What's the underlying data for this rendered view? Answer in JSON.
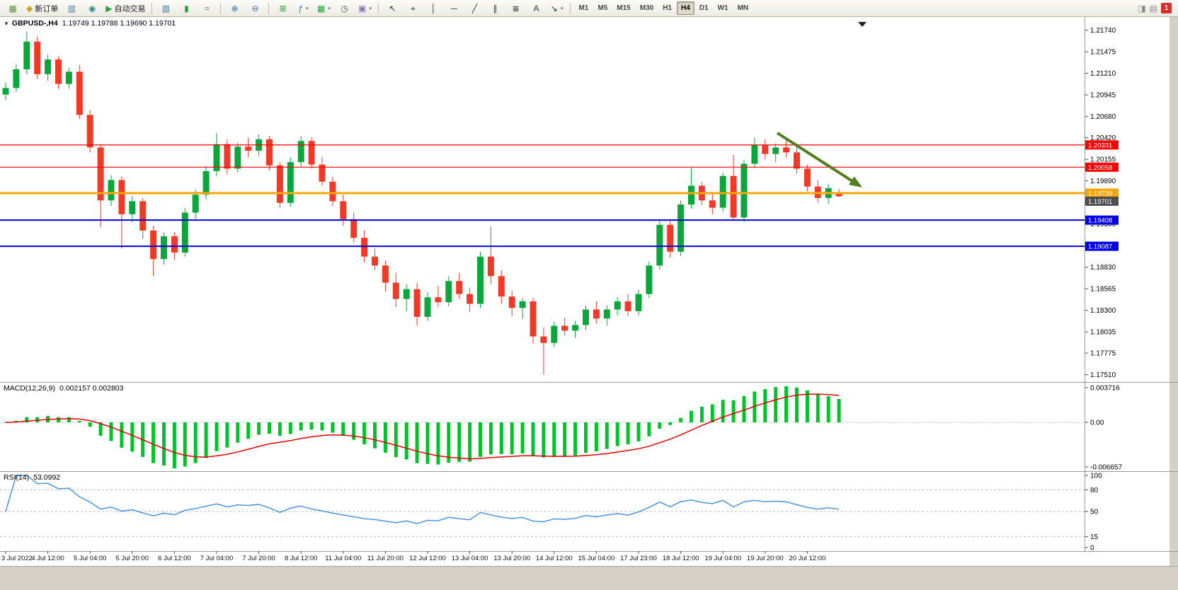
{
  "toolbar": {
    "dropdown_glyph": "▾",
    "groups": [
      {
        "name": "trade-group",
        "items": [
          {
            "name": "terminal-icon-button",
            "glyph": "▦",
            "color": "#5d8f41"
          },
          {
            "name": "new-order-button",
            "glyph": "◆",
            "color": "#d7a022",
            "label": "新订单"
          },
          {
            "name": "market-depth-button",
            "glyph": "▥",
            "color": "#4a76b8"
          },
          {
            "name": "web-terminal-button",
            "glyph": "◉",
            "color": "#2e8f85"
          },
          {
            "name": "auto-trading-button",
            "glyph": "▶",
            "color": "#27a23b",
            "label": "自动交易"
          }
        ]
      },
      {
        "name": "chart-type-group",
        "items": [
          {
            "name": "ohlc-bars-button",
            "glyph": "▥",
            "color": "#3a6fae"
          },
          {
            "name": "candlestick-chart-button",
            "glyph": "▮",
            "color": "#27a23b"
          },
          {
            "name": "line-chart-button",
            "glyph": "≈",
            "color": "#3a6fae"
          }
        ]
      },
      {
        "name": "zoom-group",
        "items": [
          {
            "name": "zoom-in-button",
            "glyph": "⊕",
            "color": "#3a6fae"
          },
          {
            "name": "zoom-out-button",
            "glyph": "⊖",
            "color": "#3a6fae"
          }
        ]
      },
      {
        "name": "window-group",
        "items": [
          {
            "name": "tile-windows-button",
            "glyph": "⊞",
            "color": "#27a23b"
          },
          {
            "name": "indicators-button",
            "glyph": "ƒ",
            "color": "#3a6fae",
            "dropdown": true
          },
          {
            "name": "new-chart-button",
            "glyph": "▦",
            "color": "#27a23b",
            "dropdown": true
          },
          {
            "name": "clock-button",
            "glyph": "◷",
            "color": "#555555"
          },
          {
            "name": "snapshot-button",
            "glyph": "▣",
            "color": "#8a6fae",
            "dropdown": true
          }
        ]
      },
      {
        "name": "objects-group",
        "items": [
          {
            "name": "cursor-button",
            "glyph": "↖",
            "color": "#333333"
          },
          {
            "name": "crosshair-button",
            "glyph": "⌖",
            "color": "#333333"
          },
          {
            "name": "vertical-line-button",
            "glyph": "│",
            "color": "#333333"
          },
          {
            "name": "horizontal-line-button",
            "glyph": "─",
            "color": "#333333"
          },
          {
            "name": "trendline-button",
            "glyph": "╱",
            "color": "#333333"
          },
          {
            "name": "channel-button",
            "glyph": "∥",
            "color": "#333333"
          },
          {
            "name": "fibonacci-button",
            "glyph": "≣",
            "color": "#333333"
          },
          {
            "name": "text-button",
            "glyph": "A",
            "color": "#333333"
          },
          {
            "name": "arrows-button",
            "glyph": "↘",
            "color": "#333333",
            "dropdown": true
          }
        ]
      }
    ],
    "timeframes": [
      {
        "name": "timeframe-m1-button",
        "label": "M1"
      },
      {
        "name": "timeframe-m5-button",
        "label": "M5"
      },
      {
        "name": "timeframe-m15-button",
        "label": "M15"
      },
      {
        "name": "timeframe-m30-button",
        "label": "M30"
      },
      {
        "name": "timeframe-h1-button",
        "label": "H1"
      },
      {
        "name": "timeframe-h4-button",
        "label": "H4",
        "active": true
      },
      {
        "name": "timeframe-d1-button",
        "label": "D1"
      },
      {
        "name": "timeframe-w1-button",
        "label": "W1"
      },
      {
        "name": "timeframe-mn-button",
        "label": "MN"
      }
    ],
    "right": [
      {
        "name": "sound-icon",
        "glyph": "◨",
        "color": "#8a8a8a"
      },
      {
        "name": "news-icon",
        "glyph": "▤",
        "color": "#8a8a8a"
      },
      {
        "name": "notification-badge",
        "label": "1",
        "badge": true
      }
    ]
  },
  "chart": {
    "menu_icon": "▼",
    "symbol_label": "GBPUSD-,H4",
    "ohlc_label": "1.19749 1.19788 1.19690 1.19701",
    "price_axis": [
      "1.21740",
      "1.21475",
      "1.21210",
      "1.20945",
      "1.20680",
      "1.20420",
      "1.20155",
      "1.19890",
      "1.19625",
      "1.19360",
      "1.19095",
      "1.18830",
      "1.18565",
      "1.18300",
      "1.18035",
      "1.17775",
      "1.17510"
    ],
    "time_axis": [
      "3 Jul 2022",
      "4 Jul 12:00",
      "5 Jul 04:00",
      "5 Jul 20:00",
      "6 Jul 12:00",
      "7 Jul 04:00",
      "7 Jul 20:00",
      "8 Jul 12:00",
      "11 Jul 04:00",
      "11 Jul 20:00",
      "12 Jul 12:00",
      "13 Jul 04:00",
      "13 Jul 20:00",
      "14 Jul 12:00",
      "15 Jul 04:00",
      "17 Jul 23:00",
      "18 Jul 12:00",
      "19 Jul 04:00",
      "19 Jul 20:00",
      "20 Jul 12:00"
    ],
    "levels": [
      {
        "name": "resistance-line-upper",
        "price": 1.20331,
        "label": "1.20331",
        "color": "#FF0000",
        "width": 1.2
      },
      {
        "name": "resistance-line-lower",
        "price": 1.20058,
        "label": "1.20058",
        "color": "#FF0000",
        "width": 1.2
      },
      {
        "name": "pivot-line-orange",
        "price": 1.19739,
        "label": "1.19739",
        "color": "#FFA500",
        "width": 3
      },
      {
        "name": "support-line-upper",
        "price": 1.19408,
        "label": "1.19408",
        "color": "#0000E6",
        "width": 2
      },
      {
        "name": "support-line-lower",
        "price": 1.19087,
        "label": "1.19087",
        "color": "#0000E6",
        "width": 2
      }
    ],
    "current_price": {
      "label": "1.19701",
      "price": 1.19701,
      "color": "#4d4d4d"
    },
    "arrow": {
      "name": "trend-arrow",
      "from": [
        1098,
        164
      ],
      "to": [
        1218,
        241
      ],
      "color": "#537D1F"
    }
  },
  "chart_data": {
    "type": "candlestick",
    "symbol": "GBPUSD",
    "timeframe": "H4",
    "up_color": "#0CA73C",
    "down_color": "#EF3A28",
    "candles": [
      [
        1.2095,
        1.211,
        1.2088,
        1.2103
      ],
      [
        1.2103,
        1.2132,
        1.2098,
        1.2126
      ],
      [
        1.2126,
        1.2172,
        1.212,
        1.216
      ],
      [
        1.216,
        1.2166,
        1.2114,
        1.212
      ],
      [
        1.212,
        1.2144,
        1.2112,
        1.2138
      ],
      [
        1.2138,
        1.2142,
        1.2102,
        1.2108
      ],
      [
        1.2108,
        1.2128,
        1.2102,
        1.2123
      ],
      [
        1.2123,
        1.2131,
        1.2065,
        1.207
      ],
      [
        1.207,
        1.2076,
        1.2024,
        1.203
      ],
      [
        1.203,
        1.2034,
        1.1932,
        1.1965
      ],
      [
        1.1965,
        1.1996,
        1.1958,
        1.199
      ],
      [
        1.199,
        1.1994,
        1.1906,
        1.1948
      ],
      [
        1.1948,
        1.197,
        1.1938,
        1.1964
      ],
      [
        1.1964,
        1.1968,
        1.1918,
        1.1928
      ],
      [
        1.1928,
        1.1934,
        1.1872,
        1.1893
      ],
      [
        1.1893,
        1.1926,
        1.1886,
        1.1921
      ],
      [
        1.1921,
        1.1926,
        1.1892,
        1.1901
      ],
      [
        1.1901,
        1.1956,
        1.1896,
        1.195
      ],
      [
        1.195,
        1.1978,
        1.1942,
        1.1972
      ],
      [
        1.1972,
        1.2007,
        1.1966,
        1.2001
      ],
      [
        1.2001,
        1.2048,
        1.1995,
        1.2034
      ],
      [
        1.2034,
        1.204,
        1.1997,
        1.2004
      ],
      [
        1.2004,
        1.2036,
        1.1999,
        1.2031
      ],
      [
        1.2031,
        1.2042,
        1.2018,
        1.2026
      ],
      [
        1.2026,
        1.2046,
        1.202,
        1.204
      ],
      [
        1.204,
        1.2044,
        1.2002,
        1.2008
      ],
      [
        1.2008,
        1.2012,
        1.1956,
        1.1962
      ],
      [
        1.1962,
        1.2018,
        1.1957,
        1.2012
      ],
      [
        1.2012,
        1.2044,
        1.2006,
        1.2038
      ],
      [
        1.2038,
        1.2042,
        1.2004,
        1.2009
      ],
      [
        1.2009,
        1.2018,
        1.1983,
        1.1988
      ],
      [
        1.1988,
        1.1994,
        1.1958,
        1.1964
      ],
      [
        1.1964,
        1.1972,
        1.1934,
        1.1942
      ],
      [
        1.1942,
        1.195,
        1.1913,
        1.1919
      ],
      [
        1.1919,
        1.1928,
        1.1889,
        1.1896
      ],
      [
        1.1896,
        1.1906,
        1.1879,
        1.1885
      ],
      [
        1.1885,
        1.1891,
        1.1853,
        1.1864
      ],
      [
        1.1864,
        1.1876,
        1.1834,
        1.1844
      ],
      [
        1.1844,
        1.1862,
        1.1829,
        1.1856
      ],
      [
        1.1856,
        1.1864,
        1.1811,
        1.1822
      ],
      [
        1.1822,
        1.1852,
        1.1817,
        1.1846
      ],
      [
        1.1846,
        1.186,
        1.1834,
        1.184
      ],
      [
        1.184,
        1.1872,
        1.1835,
        1.1866
      ],
      [
        1.1866,
        1.1876,
        1.1844,
        1.185
      ],
      [
        1.185,
        1.1858,
        1.1828,
        1.1838
      ],
      [
        1.1838,
        1.1902,
        1.1833,
        1.1896
      ],
      [
        1.1896,
        1.1933,
        1.1862,
        1.1872
      ],
      [
        1.1872,
        1.1879,
        1.1838,
        1.1847
      ],
      [
        1.1847,
        1.1854,
        1.1823,
        1.1833
      ],
      [
        1.1833,
        1.1845,
        1.1819,
        1.1841
      ],
      [
        1.1841,
        1.1845,
        1.1789,
        1.1798
      ],
      [
        1.1798,
        1.1809,
        1.1751,
        1.179
      ],
      [
        1.179,
        1.1816,
        1.1785,
        1.1811
      ],
      [
        1.1811,
        1.1821,
        1.1799,
        1.1805
      ],
      [
        1.1805,
        1.1817,
        1.1796,
        1.1812
      ],
      [
        1.1812,
        1.1836,
        1.1806,
        1.1831
      ],
      [
        1.1831,
        1.1841,
        1.1814,
        1.182
      ],
      [
        1.182,
        1.1836,
        1.1811,
        1.1831
      ],
      [
        1.1831,
        1.1846,
        1.1824,
        1.1841
      ],
      [
        1.1841,
        1.185,
        1.1823,
        1.1829
      ],
      [
        1.1829,
        1.1855,
        1.1824,
        1.185
      ],
      [
        1.185,
        1.189,
        1.1845,
        1.1885
      ],
      [
        1.1885,
        1.194,
        1.188,
        1.1935
      ],
      [
        1.1935,
        1.1941,
        1.1895,
        1.1902
      ],
      [
        1.1902,
        1.1965,
        1.1897,
        1.196
      ],
      [
        1.196,
        1.2005,
        1.1955,
        1.1983
      ],
      [
        1.1983,
        1.1988,
        1.1959,
        1.1965
      ],
      [
        1.1965,
        1.1974,
        1.1948,
        1.1956
      ],
      [
        1.1956,
        1.1999,
        1.1951,
        1.1995
      ],
      [
        1.1995,
        1.2021,
        1.194,
        1.1944
      ],
      [
        1.1944,
        1.2015,
        1.1939,
        1.201
      ],
      [
        1.201,
        1.2042,
        1.2005,
        1.2033
      ],
      [
        1.2033,
        1.204,
        1.2015,
        1.2022
      ],
      [
        1.2022,
        1.2035,
        1.2012,
        1.203
      ],
      [
        1.203,
        1.2041,
        1.2018,
        1.2024
      ],
      [
        1.2024,
        1.2033,
        1.1998,
        1.2004
      ],
      [
        1.2004,
        1.2009,
        1.1976,
        1.1982
      ],
      [
        1.1982,
        1.199,
        1.1962,
        1.1968
      ],
      [
        1.1968,
        1.1985,
        1.1961,
        1.198
      ],
      [
        1.19749,
        1.19788,
        1.1969,
        1.19701
      ]
    ],
    "indicators": {
      "macd": {
        "label": "MACD(12,26,9)",
        "values_label": "0.002157 0.002803",
        "fast": 12,
        "slow": 26,
        "signal": 9,
        "histogram_color": "#00C32C",
        "signal_color": "#E00000",
        "axis": [
          "0.003716",
          "0.00",
          "-0.006657"
        ]
      },
      "rsi": {
        "label": "RSI(14)",
        "value_label": "53.0992",
        "period": 14,
        "line_color": "#3F8FDE",
        "levels": [
          80,
          50,
          15
        ],
        "axis": [
          "100",
          "80",
          "50",
          "15",
          "0"
        ]
      }
    }
  }
}
